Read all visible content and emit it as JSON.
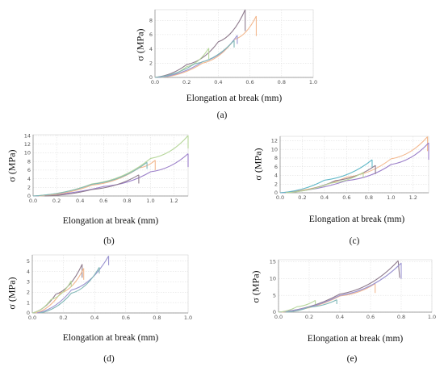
{
  "chart_data": [
    {
      "id": "a",
      "panel_label": "(a)",
      "type": "line",
      "xlabel": "Elongation at break (mm)",
      "ylabel": "σ (MPa)",
      "xlim": [
        0,
        1.0
      ],
      "ylim": [
        0,
        9.5
      ],
      "xticks": [
        "0.0",
        "0.2",
        "0.4",
        "0.6",
        "0.8",
        "1.0"
      ],
      "xtick_values": [
        0,
        0.2,
        0.4,
        0.6,
        0.8,
        1.0
      ],
      "yticks": [
        "0",
        "2",
        "4",
        "6",
        "8"
      ],
      "ytick_values": [
        0,
        2,
        4,
        6,
        8
      ],
      "grid": true,
      "series": [
        {
          "color": "#8e7a8c",
          "x": [
            0.0,
            0.2,
            0.4,
            0.57
          ],
          "y": [
            0,
            1.8,
            5.0,
            9.5
          ],
          "break": [
            0.57,
            9.5,
            0.57,
            6.5
          ]
        },
        {
          "color": "#f3b88e",
          "x": [
            0.04,
            0.3,
            0.5,
            0.64
          ],
          "y": [
            0,
            2.0,
            5.3,
            8.6
          ],
          "break": [
            0.64,
            8.6,
            0.64,
            5.8
          ]
        },
        {
          "color": "#b7d79b",
          "x": [
            0.04,
            0.2,
            0.34
          ],
          "y": [
            0,
            1.5,
            4.1
          ],
          "break": [
            0.34,
            4.1,
            0.34,
            2.6
          ]
        },
        {
          "color": "#9b94d1",
          "x": [
            0.02,
            0.3,
            0.52
          ],
          "y": [
            0,
            2.2,
            5.9
          ],
          "break": [
            0.52,
            5.9,
            0.52,
            4.7
          ]
        },
        {
          "color": "#7fb6b6",
          "x": [
            0.0,
            0.25,
            0.5
          ],
          "y": [
            0,
            1.9,
            5.2
          ],
          "break": [
            0.5,
            5.2,
            0.5,
            4.2
          ]
        }
      ]
    },
    {
      "id": "b",
      "panel_label": "(b)",
      "type": "line",
      "xlabel": "Elongation at break (mm)",
      "ylabel": "σ (MPa)",
      "xlim": [
        0,
        1.32
      ],
      "ylim": [
        0,
        14.2
      ],
      "xticks": [
        "0.0",
        "0.2",
        "0.4",
        "0.6",
        "0.8",
        "1.0",
        "1.2"
      ],
      "xtick_values": [
        0,
        0.2,
        0.4,
        0.6,
        0.8,
        1.0,
        1.2
      ],
      "yticks": [
        "0",
        "2",
        "4",
        "6",
        "8",
        "10",
        "12",
        "14"
      ],
      "ytick_values": [
        0,
        2,
        4,
        6,
        8,
        10,
        12,
        14
      ],
      "grid": true,
      "series": [
        {
          "color": "#b7d79b",
          "x": [
            0.0,
            0.5,
            1.0,
            1.32
          ],
          "y": [
            0,
            2.8,
            8.7,
            14.0
          ],
          "break": [
            1.32,
            14.0,
            1.32,
            11.0
          ]
        },
        {
          "color": "#9b7fc9",
          "x": [
            0.0,
            0.6,
            1.0,
            1.32
          ],
          "y": [
            0,
            2.2,
            5.6,
            9.8
          ],
          "break": [
            1.32,
            9.8,
            1.32,
            6.7
          ]
        },
        {
          "color": "#f3b88e",
          "x": [
            0.05,
            0.5,
            0.9,
            1.04
          ],
          "y": [
            0,
            2.5,
            6.5,
            8.3
          ],
          "break": [
            1.04,
            8.3,
            1.04,
            6.0
          ]
        },
        {
          "color": "#8e7a8c",
          "x": [
            0.1,
            0.5,
            0.9
          ],
          "y": [
            0,
            1.5,
            4.9
          ],
          "break": [
            0.9,
            4.9,
            0.9,
            2.9
          ]
        },
        {
          "color": "#7fb6b6",
          "x": [
            0.0,
            0.5,
            0.97
          ],
          "y": [
            0,
            2.7,
            7.8
          ],
          "break": [
            0.97,
            7.8,
            0.97,
            6.3
          ]
        }
      ]
    },
    {
      "id": "c",
      "panel_label": "(c)",
      "type": "line",
      "xlabel": "Elongation at break (mm)",
      "ylabel": "σ (MPa)",
      "xlim": [
        0,
        1.34
      ],
      "ylim": [
        0,
        13
      ],
      "xticks": [
        "0.0",
        "0.2",
        "0.4",
        "0.6",
        "0.8",
        "1.0",
        "1.2"
      ],
      "xtick_values": [
        0,
        0.2,
        0.4,
        0.6,
        0.8,
        1.0,
        1.2
      ],
      "yticks": [
        "0",
        "2",
        "4",
        "6",
        "8",
        "10",
        "12"
      ],
      "ytick_values": [
        0,
        2,
        4,
        6,
        8,
        10,
        12
      ],
      "grid": true,
      "series": [
        {
          "color": "#f3b88e",
          "x": [
            0.0,
            0.6,
            1.0,
            1.33
          ],
          "y": [
            0,
            3.6,
            7.8,
            12.9
          ],
          "break": [
            1.33,
            12.9,
            1.33,
            9.6
          ]
        },
        {
          "color": "#9b7fc9",
          "x": [
            0.0,
            0.6,
            1.0,
            1.34
          ],
          "y": [
            0,
            2.8,
            6.5,
            11.5
          ],
          "break": [
            1.34,
            11.5,
            1.34,
            7.6
          ]
        },
        {
          "color": "#5fb8c8",
          "x": [
            0.0,
            0.4,
            0.83
          ],
          "y": [
            0,
            2.9,
            7.6
          ],
          "break": [
            0.83,
            7.6,
            0.83,
            5.8
          ]
        },
        {
          "color": "#8e7a8c",
          "x": [
            0.05,
            0.5,
            0.86
          ],
          "y": [
            0,
            2.8,
            6.3
          ],
          "break": [
            0.86,
            6.3,
            0.86,
            4.3
          ]
        },
        {
          "color": "#b7d79b",
          "x": [
            0.05,
            0.45,
            0.75
          ],
          "y": [
            0,
            2.2,
            4.7
          ],
          "break": [
            0.75,
            4.7,
            0.75,
            3.5
          ]
        }
      ]
    },
    {
      "id": "d",
      "panel_label": "(d)",
      "type": "line",
      "xlabel": "Elongation at break (mm)",
      "ylabel": "σ (MPa)",
      "xlim": [
        0,
        1.0
      ],
      "ylim": [
        0,
        5.6
      ],
      "xticks": [
        "0.0",
        "0.2",
        "0.4",
        "0.6",
        "0.8",
        "1.0"
      ],
      "xtick_values": [
        0,
        0.2,
        0.4,
        0.6,
        0.8,
        1.0
      ],
      "yticks": [
        "0",
        "1",
        "2",
        "3",
        "4",
        "5"
      ],
      "ytick_values": [
        0,
        1,
        2,
        3,
        4,
        5
      ],
      "grid": true,
      "series": [
        {
          "color": "#8e7a8c",
          "x": [
            0.0,
            0.15,
            0.32
          ],
          "y": [
            0,
            1.8,
            4.7
          ],
          "break": [
            0.32,
            4.7,
            0.32,
            3.4
          ]
        },
        {
          "color": "#f3b88e",
          "x": [
            0.02,
            0.18,
            0.33
          ],
          "y": [
            0,
            1.9,
            4.3
          ],
          "break": [
            0.33,
            4.3,
            0.33,
            3.2
          ]
        },
        {
          "color": "#9b94d1",
          "x": [
            0.03,
            0.25,
            0.49
          ],
          "y": [
            0,
            2.2,
            5.5
          ],
          "break": [
            0.49,
            5.5,
            0.49,
            4.6
          ]
        },
        {
          "color": "#7fb6b6",
          "x": [
            0.05,
            0.25,
            0.43
          ],
          "y": [
            0,
            1.9,
            4.4
          ],
          "break": [
            0.43,
            4.4,
            0.43,
            3.8
          ]
        },
        {
          "color": "#b7d79b",
          "x": [
            0.0,
            0.12,
            0.25
          ],
          "y": [
            0,
            1.3,
            3.1
          ],
          "break": [
            0.25,
            3.1,
            0.25,
            2.5
          ]
        }
      ]
    },
    {
      "id": "e",
      "panel_label": "(e)",
      "type": "line",
      "xlabel": "Elongation at break (mm)",
      "ylabel": "σ (MPa)",
      "xlim": [
        0,
        1.0
      ],
      "ylim": [
        0,
        15.6
      ],
      "xticks": [
        "0.0",
        "0.2",
        "0.4",
        "0.6",
        "0.8",
        "1.0"
      ],
      "xtick_values": [
        0,
        0.2,
        0.4,
        0.6,
        0.8,
        1.0
      ],
      "yticks": [
        "0",
        "5",
        "10",
        "15"
      ],
      "ytick_values": [
        0,
        5,
        10,
        15
      ],
      "grid": true,
      "series": [
        {
          "color": "#8e7a8c",
          "x": [
            0.0,
            0.4,
            0.78
          ],
          "y": [
            0,
            5.4,
            15.3
          ],
          "break": [
            0.78,
            15.3,
            0.79,
            10.2
          ]
        },
        {
          "color": "#f3b88e",
          "x": [
            0.02,
            0.4,
            0.63
          ],
          "y": [
            0,
            4.8,
            8.5
          ],
          "break": [
            0.63,
            8.5,
            0.63,
            5.7
          ]
        },
        {
          "color": "#9b94d1",
          "x": [
            0.0,
            0.4,
            0.8
          ],
          "y": [
            0,
            5.0,
            14.6
          ],
          "break": [
            0.8,
            14.6,
            0.8,
            9.9
          ]
        },
        {
          "color": "#b7d79b",
          "x": [
            0.0,
            0.12,
            0.24
          ],
          "y": [
            0,
            1.6,
            3.5
          ],
          "break": [
            0.24,
            3.5,
            0.24,
            2.3
          ]
        },
        {
          "color": "#7fb6b6",
          "x": [
            0.05,
            0.2,
            0.38
          ],
          "y": [
            0,
            1.5,
            3.7
          ],
          "break": [
            0.38,
            3.7,
            0.38,
            2.4
          ]
        }
      ]
    }
  ]
}
